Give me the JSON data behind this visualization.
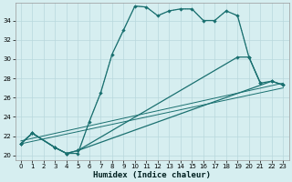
{
  "xlabel": "Humidex (Indice chaleur)",
  "background_color": "#d6eef0",
  "grid_color": "#b8d8dc",
  "line_color": "#1a7070",
  "xlim": [
    -0.5,
    23.5
  ],
  "ylim": [
    19.5,
    35.8
  ],
  "xticks": [
    0,
    1,
    2,
    3,
    4,
    5,
    6,
    7,
    8,
    9,
    10,
    11,
    12,
    13,
    14,
    15,
    16,
    17,
    18,
    19,
    20,
    21,
    22,
    23
  ],
  "yticks": [
    20,
    22,
    24,
    26,
    28,
    30,
    32,
    34
  ],
  "line1_x": [
    0,
    1,
    3,
    4,
    5,
    6,
    7,
    8,
    9,
    10,
    11,
    12,
    13,
    14,
    15,
    16,
    17,
    18,
    19,
    20,
    21
  ],
  "line1_y": [
    21.2,
    22.3,
    20.8,
    20.2,
    20.2,
    23.5,
    26.5,
    30.5,
    33.0,
    35.5,
    35.4,
    34.5,
    35.0,
    35.2,
    35.2,
    34.0,
    34.0,
    35.0,
    34.5,
    30.2,
    27.5
  ],
  "line2_x": [
    0,
    1,
    3,
    4,
    5,
    6,
    7,
    8,
    9,
    10,
    11,
    12,
    13,
    14,
    15,
    16,
    17,
    18,
    19,
    20,
    21
  ],
  "line2_y": [
    21.2,
    22.3,
    20.8,
    20.2,
    20.2,
    23.5,
    26.5,
    30.5,
    33.0,
    35.5,
    35.4,
    34.5,
    35.0,
    35.2,
    35.2,
    34.0,
    34.0,
    35.0,
    34.5,
    30.2,
    27.5
  ],
  "line3_x": [
    0,
    1,
    3,
    4,
    5,
    19,
    20,
    21,
    22,
    23
  ],
  "line3_y": [
    21.2,
    22.3,
    20.8,
    20.2,
    20.5,
    30.2,
    30.2,
    27.5,
    27.7,
    27.3
  ],
  "line4_x": [
    0,
    1,
    3,
    4,
    5,
    22,
    23
  ],
  "line4_y": [
    21.2,
    22.3,
    20.8,
    20.2,
    20.5,
    27.7,
    27.3
  ]
}
